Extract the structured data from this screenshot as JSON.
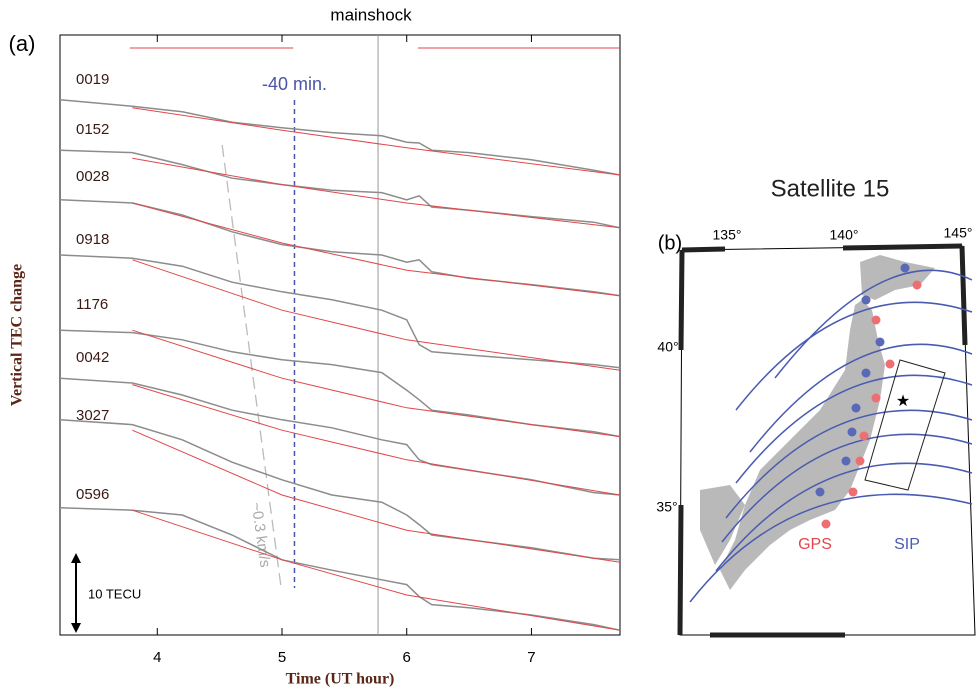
{
  "chart_data": {
    "type": "line",
    "panel_label": "(a)",
    "x_label": "Time (UT hour)",
    "y_label": "Vertical TEC change",
    "xlim": [
      3.22,
      7.71
    ],
    "xticks": [
      4,
      5,
      6,
      7
    ],
    "ylim": [
      0,
      75
    ],
    "x": [
      3.22,
      3.8,
      4.2,
      4.6,
      5.0,
      5.4,
      5.8,
      6.0,
      6.1,
      6.2,
      6.5,
      7.0,
      7.5,
      7.71
    ],
    "fit_x": [
      3.8,
      5.0,
      6.0,
      7.71
    ],
    "fit_color": "#e0474c",
    "series": [
      {
        "name": "0019",
        "color": "#8c8c8c",
        "values": [
          66.9,
          66.1,
          65.4,
          64.1,
          63.4,
          62.8,
          62.4,
          61.6,
          61.5,
          60.6,
          60.3,
          59.4,
          58.1,
          57.5
        ],
        "fit_values": [
          65.9,
          63.1,
          60.9,
          57.5
        ]
      },
      {
        "name": "0152",
        "color": "#8c8c8c",
        "values": [
          60.6,
          60.3,
          58.8,
          57.1,
          56.3,
          55.6,
          55.3,
          54.4,
          54.9,
          53.5,
          53.1,
          52.3,
          51.6,
          50.9
        ],
        "fit_values": [
          59.6,
          56.3,
          54.0,
          50.9
        ]
      },
      {
        "name": "0028",
        "color": "#8c8c8c",
        "values": [
          54.4,
          54.0,
          52.5,
          50.4,
          48.8,
          47.9,
          47.5,
          46.6,
          46.9,
          45.4,
          44.6,
          43.8,
          42.9,
          42.4
        ],
        "fit_values": [
          54.0,
          49.0,
          45.6,
          42.4
        ]
      },
      {
        "name": "0918",
        "color": "#8c8c8c",
        "values": [
          47.5,
          47.1,
          46.1,
          44.1,
          42.9,
          41.9,
          40.6,
          39.4,
          36.3,
          35.4,
          35.0,
          34.4,
          33.8,
          33.4
        ],
        "fit_values": [
          46.9,
          40.6,
          36.9,
          33.1
        ]
      },
      {
        "name": "1176",
        "color": "#8c8c8c",
        "values": [
          38.1,
          37.8,
          36.9,
          35.4,
          34.4,
          33.8,
          32.8,
          30.6,
          29.4,
          28.1,
          27.5,
          26.3,
          25.4,
          24.8
        ],
        "fit_values": [
          38.1,
          32.1,
          28.4,
          24.8
        ]
      },
      {
        "name": "0042",
        "color": "#8c8c8c",
        "values": [
          32.1,
          31.5,
          30.0,
          28.1,
          26.9,
          25.9,
          24.4,
          23.8,
          21.9,
          21.3,
          20.6,
          19.4,
          17.8,
          17.5
        ],
        "fit_values": [
          31.3,
          25.6,
          21.9,
          17.5
        ]
      },
      {
        "name": "3027",
        "color": "#8c8c8c",
        "values": [
          26.9,
          26.3,
          24.4,
          21.6,
          19.4,
          17.5,
          16.6,
          15.0,
          13.8,
          12.5,
          11.9,
          10.9,
          9.6,
          9.4
        ],
        "fit_values": [
          25.6,
          17.5,
          13.1,
          9.1
        ]
      },
      {
        "name": "0596",
        "color": "#8c8c8c",
        "values": [
          15.9,
          15.6,
          15.0,
          12.5,
          9.4,
          8.1,
          6.9,
          6.3,
          4.8,
          3.8,
          3.4,
          2.5,
          1.3,
          0.6
        ],
        "fit_values": [
          15.6,
          9.4,
          5.0,
          0.6
        ]
      }
    ],
    "fit_windows": [
      [
        3.78,
        5.09
      ],
      [
        6.09,
        7.71
      ]
    ],
    "mainshock": {
      "x": 5.77,
      "label": "mainshock"
    },
    "marker_line": {
      "x": 5.1,
      "label": "-40 min.",
      "color": "#4a55a8"
    },
    "velocity_line": {
      "x": [
        4.52,
        4.99
      ],
      "y": [
        61.25,
        6.25
      ],
      "label": "~0.3 km/s"
    },
    "scale_bar": {
      "value": 10,
      "label": "10 TECU"
    }
  },
  "map": {
    "panel_label": "(b)",
    "title": "Satellite 15",
    "lon_labels": [
      "135°",
      "140°",
      "145°"
    ],
    "lat_labels": [
      "40°",
      "35°"
    ],
    "legend": {
      "gps": "GPS",
      "sip": "SIP"
    }
  }
}
